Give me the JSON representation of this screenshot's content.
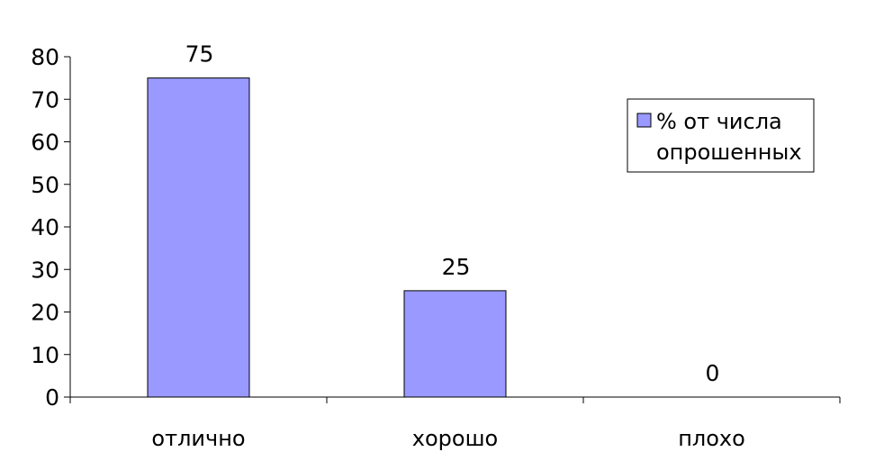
{
  "chart_data": {
    "type": "bar",
    "categories": [
      "отлично",
      "хорошо",
      "плохо"
    ],
    "series": [
      {
        "name": "% от числа опрошенных",
        "legend_lines": [
          "% от числа",
          "опрошенных"
        ],
        "values": [
          75,
          25,
          0
        ],
        "color": "#9999FF"
      }
    ],
    "data_labels": [
      "75",
      "25",
      "0"
    ],
    "y_ticks": [
      "0",
      "10",
      "20",
      "30",
      "40",
      "50",
      "60",
      "70",
      "80"
    ],
    "ylim": [
      0,
      80
    ],
    "grid": false,
    "legend": "right",
    "title": "",
    "xlabel": "",
    "ylabel": ""
  }
}
